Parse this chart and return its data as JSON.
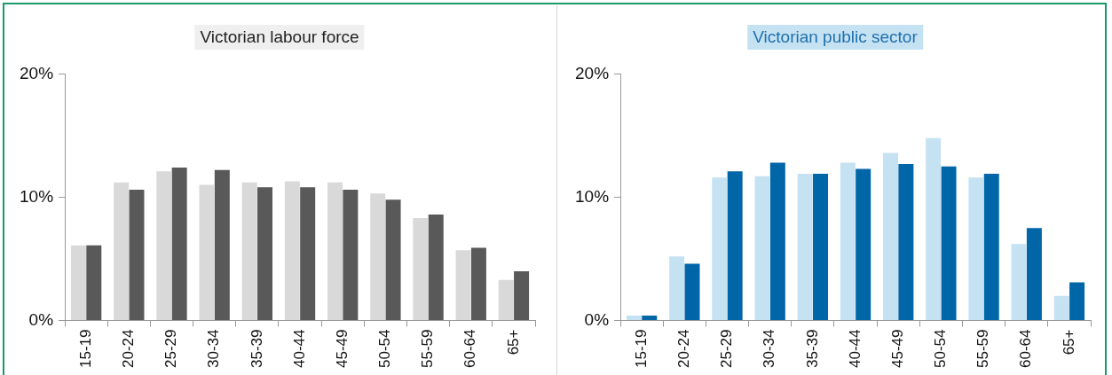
{
  "chart_data": [
    {
      "type": "bar",
      "title": "Victorian labour force",
      "categories": [
        "15-19",
        "20-24",
        "25-29",
        "30-34",
        "35-39",
        "40-44",
        "45-49",
        "50-54",
        "55-59",
        "60-64",
        "65+"
      ],
      "series": [
        {
          "color": "#d9d9d9",
          "values": [
            6.1,
            11.2,
            12.1,
            11.0,
            11.2,
            11.3,
            11.2,
            10.3,
            8.3,
            5.7,
            3.3
          ]
        },
        {
          "color": "#595959",
          "values": [
            6.1,
            10.6,
            12.4,
            12.2,
            10.8,
            10.8,
            10.6,
            9.8,
            8.6,
            5.9,
            4.0
          ]
        }
      ],
      "ylim": [
        0,
        20
      ],
      "yticks": [
        {
          "value": 0,
          "label": "0%"
        },
        {
          "value": 10,
          "label": "10%"
        },
        {
          "value": 20,
          "label": "20%"
        }
      ],
      "grid": false,
      "legend": false
    },
    {
      "type": "bar",
      "title": "Victorian public sector",
      "categories": [
        "15-19",
        "20-24",
        "25-29",
        "30-34",
        "35-39",
        "40-44",
        "45-49",
        "50-54",
        "55-59",
        "60-64",
        "65+"
      ],
      "series": [
        {
          "color": "#c5e2f2",
          "values": [
            0.4,
            5.2,
            11.6,
            11.7,
            11.9,
            12.8,
            13.6,
            14.8,
            11.6,
            6.2,
            2.0
          ]
        },
        {
          "color": "#0066a8",
          "values": [
            0.4,
            4.6,
            12.1,
            12.8,
            11.9,
            12.3,
            12.7,
            12.5,
            11.9,
            7.5,
            3.1
          ]
        }
      ],
      "ylim": [
        0,
        20
      ],
      "yticks": [
        {
          "value": 0,
          "label": "0%"
        },
        {
          "value": 10,
          "label": "10%"
        },
        {
          "value": 20,
          "label": "20%"
        }
      ],
      "grid": false,
      "legend": false
    }
  ]
}
